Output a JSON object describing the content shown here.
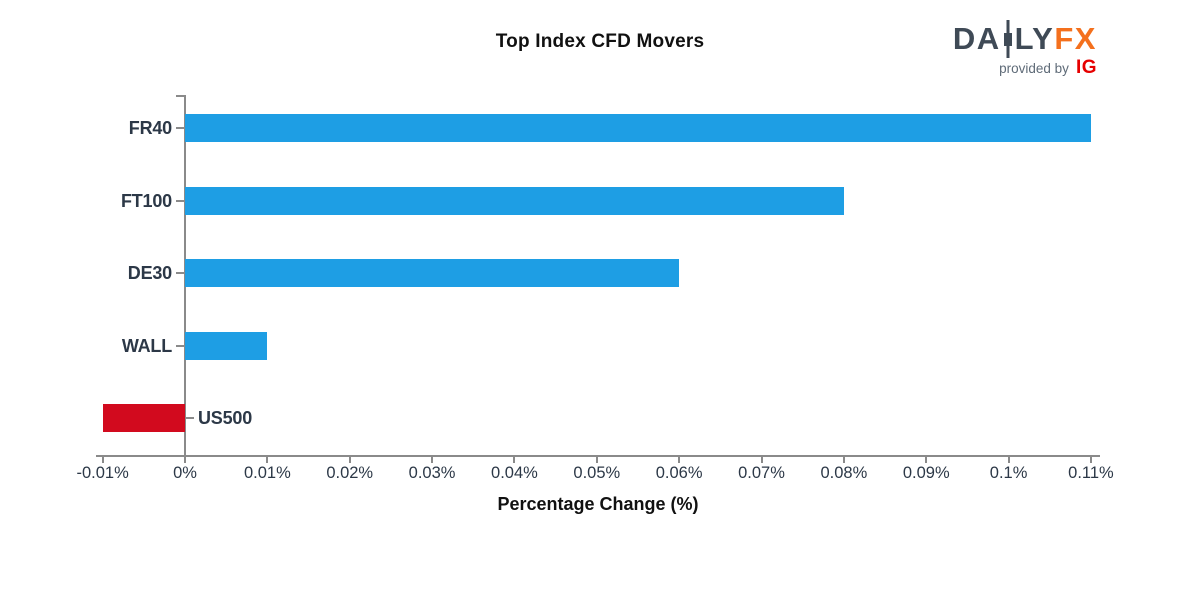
{
  "title": "Top Index CFD Movers",
  "logo": {
    "brand_prefix": "DA",
    "brand_suffix": "LY",
    "brand_fx": "FX",
    "candle_icon": "candlestick-icon",
    "provided_by": "provided by",
    "ig": "IG",
    "colors": {
      "brand": "#3f4a56",
      "fx": "#f4701d",
      "provided_by": "#5f6b78",
      "ig": "#e60000"
    }
  },
  "chart_data": {
    "type": "bar",
    "orientation": "horizontal",
    "title": "Top Index CFD Movers",
    "xlabel": "Percentage Change (%)",
    "ylabel": "",
    "categories": [
      "FR40",
      "FT100",
      "DE30",
      "WALL",
      "US500"
    ],
    "values": [
      0.11,
      0.08,
      0.06,
      0.01,
      -0.01
    ],
    "value_labels": [
      "0.11%",
      "0.08%",
      "0.06%",
      "0.01%",
      "-0.01%"
    ],
    "xlim": [
      -0.011,
      0.111
    ],
    "x_ticks": [
      -0.01,
      0,
      0.01,
      0.02,
      0.03,
      0.04,
      0.05,
      0.06,
      0.07,
      0.08,
      0.09,
      0.1,
      0.11
    ],
    "x_tick_labels": [
      "-0.01%",
      "0%",
      "0.01%",
      "0.02%",
      "0.03%",
      "0.04%",
      "0.05%",
      "0.06%",
      "0.07%",
      "0.08%",
      "0.09%",
      "0.1%",
      "0.11%"
    ],
    "grid": false,
    "legend": false,
    "colors": {
      "positive_bar": "#1e9ee4",
      "negative_bar": "#d20a1e",
      "axis": "#8a8a8a",
      "tick_label": "#2c3847",
      "title": "#111111"
    }
  }
}
